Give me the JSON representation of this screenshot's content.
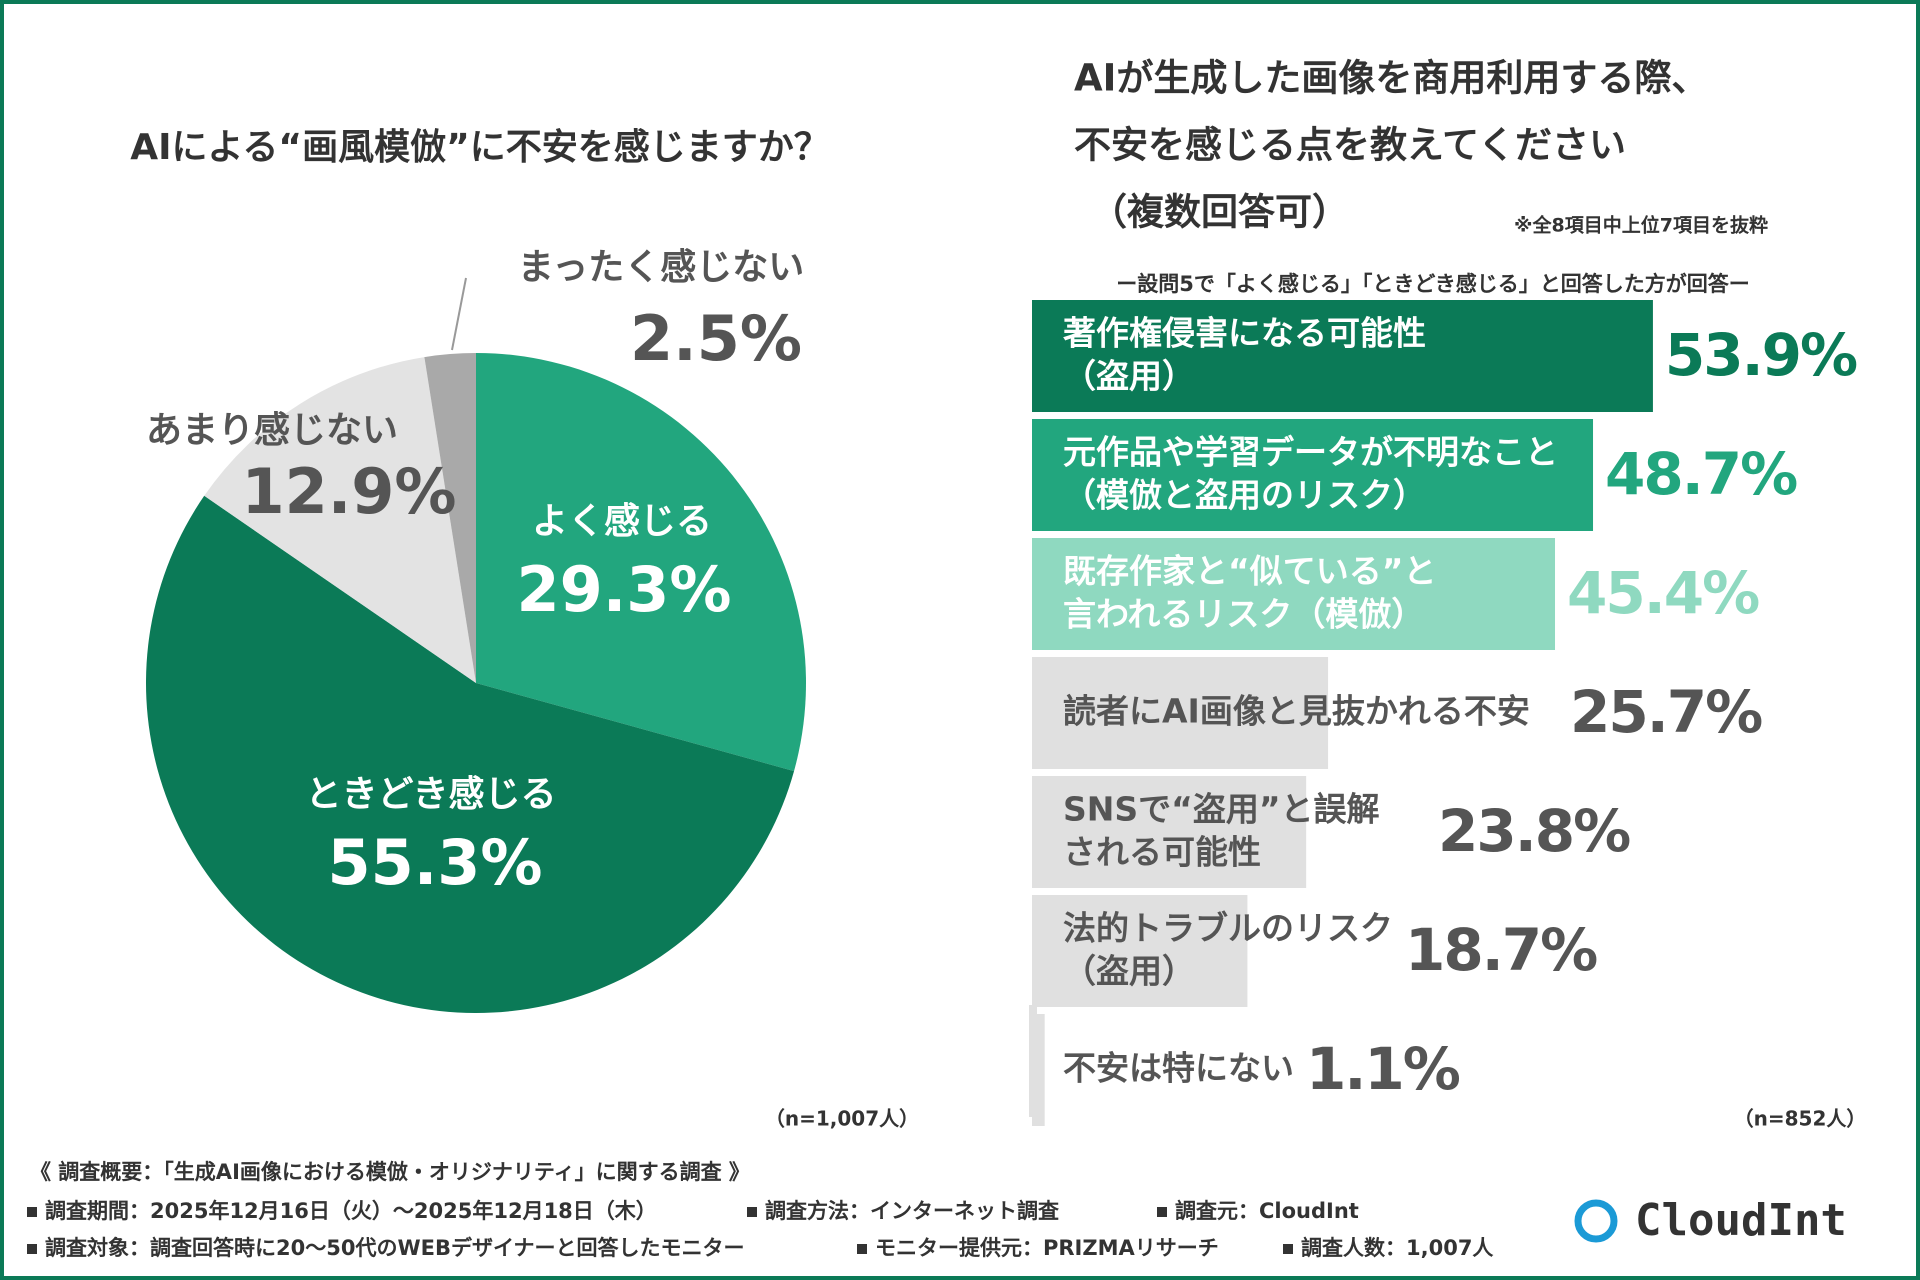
{
  "chart_data": [
    {
      "type": "pie",
      "title": "AIによる“画風模倣”に不安を感じますか？",
      "categories": [
        "よく感じる",
        "ときどき感じる",
        "あまり感じない",
        "まったく感じない"
      ],
      "values": [
        29.3,
        55.3,
        12.9,
        2.5
      ],
      "value_labels": [
        "29.3%",
        "55.3%",
        "12.9%",
        "2.5%"
      ],
      "colors": [
        "#22a67e",
        "#0b7a57",
        "#e3e3e3",
        "#a9a9a9"
      ],
      "label_colors": [
        "#ffffff",
        "#ffffff",
        "#555555",
        "#555555"
      ],
      "note": "（n=1,007人）"
    },
    {
      "type": "hbar",
      "title": [
        "AIが生成した画像を商用利用する際、",
        "不安を感じる点を教えてください",
        "（複数回答可）"
      ],
      "note": "※全8項目中上位7項目を抜粋",
      "subtitle": "ー設問5で「よく感じる」「ときどき感じる」と回答した方が回答ー",
      "categories": [
        [
          "著作権侵害になる可能性",
          "（盗用）"
        ],
        [
          "元作品や学習データが不明なこと",
          "（模倣と盗用のリスク）"
        ],
        [
          "既存作家と“似ている”と",
          "言われるリスク（模倣）"
        ],
        [
          "読者にAI画像と見抜かれる不安"
        ],
        [
          "SNSで“盗用”と誤解",
          "される可能性"
        ],
        [
          "法的トラブルのリスク",
          "（盗用）"
        ],
        [
          "不安は特にない"
        ]
      ],
      "values": [
        53.9,
        48.7,
        45.4,
        25.7,
        23.8,
        18.7,
        1.1
      ],
      "value_labels": [
        "53.9%",
        "48.7%",
        "45.4%",
        "25.7%",
        "23.8%",
        "18.7%",
        "1.1%"
      ],
      "colors": [
        "#0b7a57",
        "#22a67e",
        "#8fd9c0",
        "#e0e0e0",
        "#e0e0e0",
        "#e0e0e0",
        "#e0e0e0"
      ],
      "label_colors": [
        "#ffffff",
        "#ffffff",
        "#ffffff",
        "#555555",
        "#555555",
        "#555555",
        "#555555"
      ],
      "value_colors": [
        "#0b7a57",
        "#22a67e",
        "#8fd9c0",
        "#555555",
        "#555555",
        "#555555",
        "#555555"
      ],
      "xlim": [
        0,
        100
      ],
      "note_n": "（n=852人）"
    }
  ],
  "footer": {
    "heading": "《 調査概要：「生成AI画像における模倣・オリジナリティ」に関する調査 》",
    "items": [
      "調査期間：2025年12月16日（火）～2025年12月18日（木）",
      "調査方法：インターネット調査",
      "調査元：CloudInt",
      "調査対象：調査回答時に20～50代のWEBデザイナーと回答したモニター",
      "モニター提供元：PRIZMAリサーチ",
      "調査人数：1,007人"
    ]
  },
  "brand": "CloudInt"
}
